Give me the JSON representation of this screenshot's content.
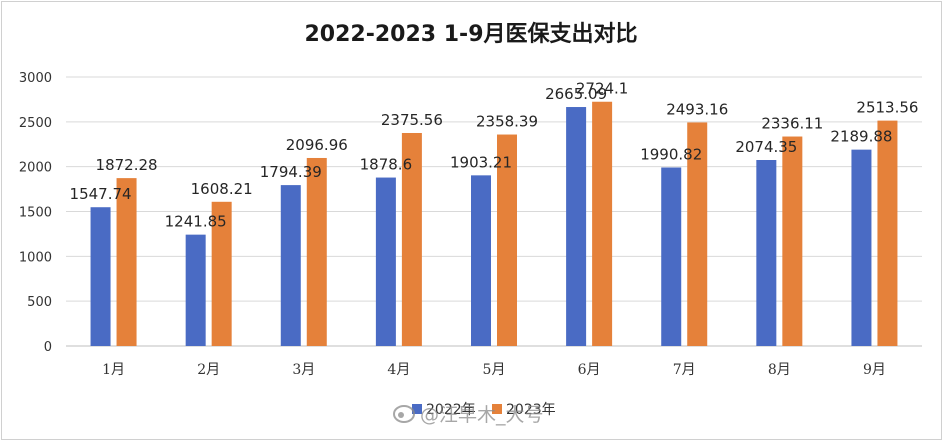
{
  "chart_data": {
    "type": "bar",
    "title": "2022-2023 1-9月医保支出对比",
    "categories": [
      "1月",
      "2月",
      "3月",
      "4月",
      "5月",
      "6月",
      "7月",
      "8月",
      "9月"
    ],
    "series": [
      {
        "name": "2022年",
        "color": "#4a6bc4",
        "values": [
          1547.74,
          1241.85,
          1794.39,
          1878.6,
          1903.21,
          2665.09,
          1990.82,
          2074.35,
          2189.88
        ]
      },
      {
        "name": "2023年",
        "color": "#e5813a",
        "values": [
          1872.28,
          1608.21,
          2096.96,
          2375.56,
          2358.39,
          2724.1,
          2493.16,
          2336.11,
          2513.56
        ]
      }
    ],
    "ylim": [
      0,
      3000
    ],
    "yticks": [
      0,
      500,
      1000,
      1500,
      2000,
      2500,
      3000
    ],
    "xlabel": "",
    "ylabel": "",
    "grid": true,
    "legend_position": "bottom"
  },
  "watermark": {
    "text": "@汪早木_大号",
    "icon": "weibo-icon"
  }
}
